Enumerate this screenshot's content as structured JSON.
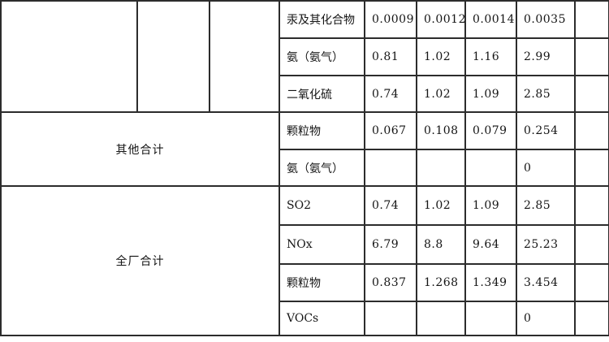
{
  "page": {
    "background_color": "#ffffff",
    "grid_line_color": "#2c2c2c",
    "text_color": "#151515"
  },
  "table": {
    "description_note_visible_text_only": "",
    "sections": [
      {
        "group_label": "",
        "left_empty_cells": [
          "",
          "",
          ""
        ],
        "rows": [
          {
            "name": "汞及其化合物",
            "values": [
              "0.0009",
              "0.0012",
              "0.0014",
              "0.0035"
            ],
            "trailing": ""
          },
          {
            "name": "氨（氨气）",
            "values": [
              "0.81",
              "1.02",
              "1.16",
              "2.99"
            ],
            "trailing": ""
          },
          {
            "name": "二氧化硫",
            "values": [
              "0.74",
              "1.02",
              "1.09",
              "2.85"
            ],
            "trailing": ""
          }
        ]
      },
      {
        "group_label": "其他合计",
        "rows": [
          {
            "name": "颗粒物",
            "values": [
              "0.067",
              "0.108",
              "0.079",
              "0.254"
            ],
            "trailing": ""
          },
          {
            "name": "氨（氨气）",
            "values": [
              "",
              "",
              "",
              "0"
            ],
            "trailing": ""
          }
        ]
      },
      {
        "group_label": "全厂合计",
        "rows": [
          {
            "name": "SO2",
            "values": [
              "0.74",
              "1.02",
              "1.09",
              "2.85"
            ],
            "trailing": ""
          },
          {
            "name": "NOx",
            "values": [
              "6.79",
              "8.8",
              "9.64",
              "25.23"
            ],
            "trailing": ""
          },
          {
            "name": "颗粒物",
            "values": [
              "0.837",
              "1.268",
              "1.349",
              "3.454"
            ],
            "trailing": ""
          },
          {
            "name": "VOCs",
            "values": [
              "",
              "",
              "",
              "0"
            ],
            "trailing": ""
          }
        ]
      }
    ]
  }
}
